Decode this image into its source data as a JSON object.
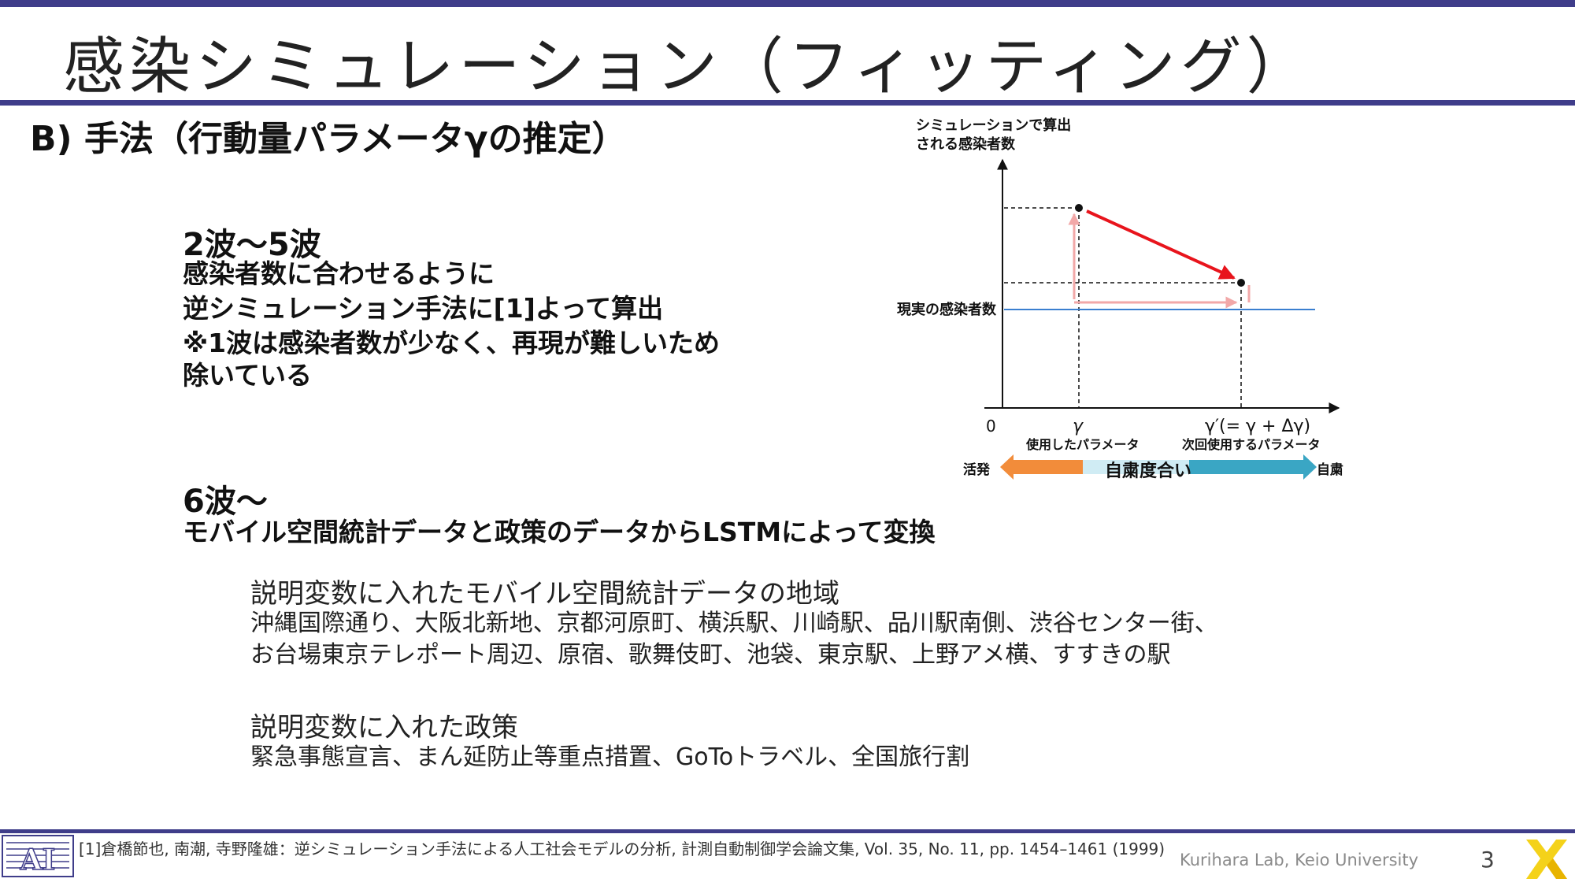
{
  "title": "感染シミュレーション（フィッティング）",
  "heading": "B) 手法（行動量パラメータγの推定）",
  "section1": {
    "heading": "2波～5波",
    "lines": [
      "感染者数に合わせるように",
      "逆シミュレーション手法に[1]よって算出",
      "※1波は感染者数が少なく、再現が難しいため",
      "除いている"
    ]
  },
  "section2": {
    "heading": "6波～",
    "line": "モバイル空間統計データと政策のデータからLSTMによって変換"
  },
  "explain_region": {
    "heading": "説明変数に入れたモバイル空間統計データの地域",
    "lines": [
      "沖縄国際通り、大阪北新地、京都河原町、横浜駅、川崎駅、品川駅南側、渋谷センター街、",
      "お台場東京テレポート周辺、原宿、歌舞伎町、池袋、東京駅、上野アメ横、すすきの駅"
    ]
  },
  "explain_policy": {
    "heading": "説明変数に入れた政策",
    "line": "緊急事態宣言、まん延防止等重点措置、GoToトラベル、全国旅行割"
  },
  "diagram": {
    "y_label_line1": "シミュレーションで算出",
    "y_label_line2": "される感染者数",
    "real_label": "現実の感染者数",
    "origin": "0",
    "gamma": "γ",
    "gamma_prime": "γ′(= γ + Δγ)",
    "used_param": "使用したパラメータ",
    "next_param": "次回使用するパラメータ",
    "active": "活発",
    "restraint": "自粛",
    "restraint_degree": "自粛度合い",
    "colors": {
      "active_arrow": "#f28c3a",
      "restraint_arrow": "#3aa6c4",
      "trend": "#e8141c",
      "real_line": "#3a7fd0",
      "pink": "#f2a8a8"
    }
  },
  "footer": {
    "reference": "[1]倉橋節也, 南潮, 寺野隆雄：逆シミュレーション手法による人工社会モデルの分析, 計測自動制御学会論文集, Vol. 35, No. 11, pp. 1454–1461 (1999)",
    "credit": "Kurihara Lab, Keio University",
    "page": "3"
  }
}
